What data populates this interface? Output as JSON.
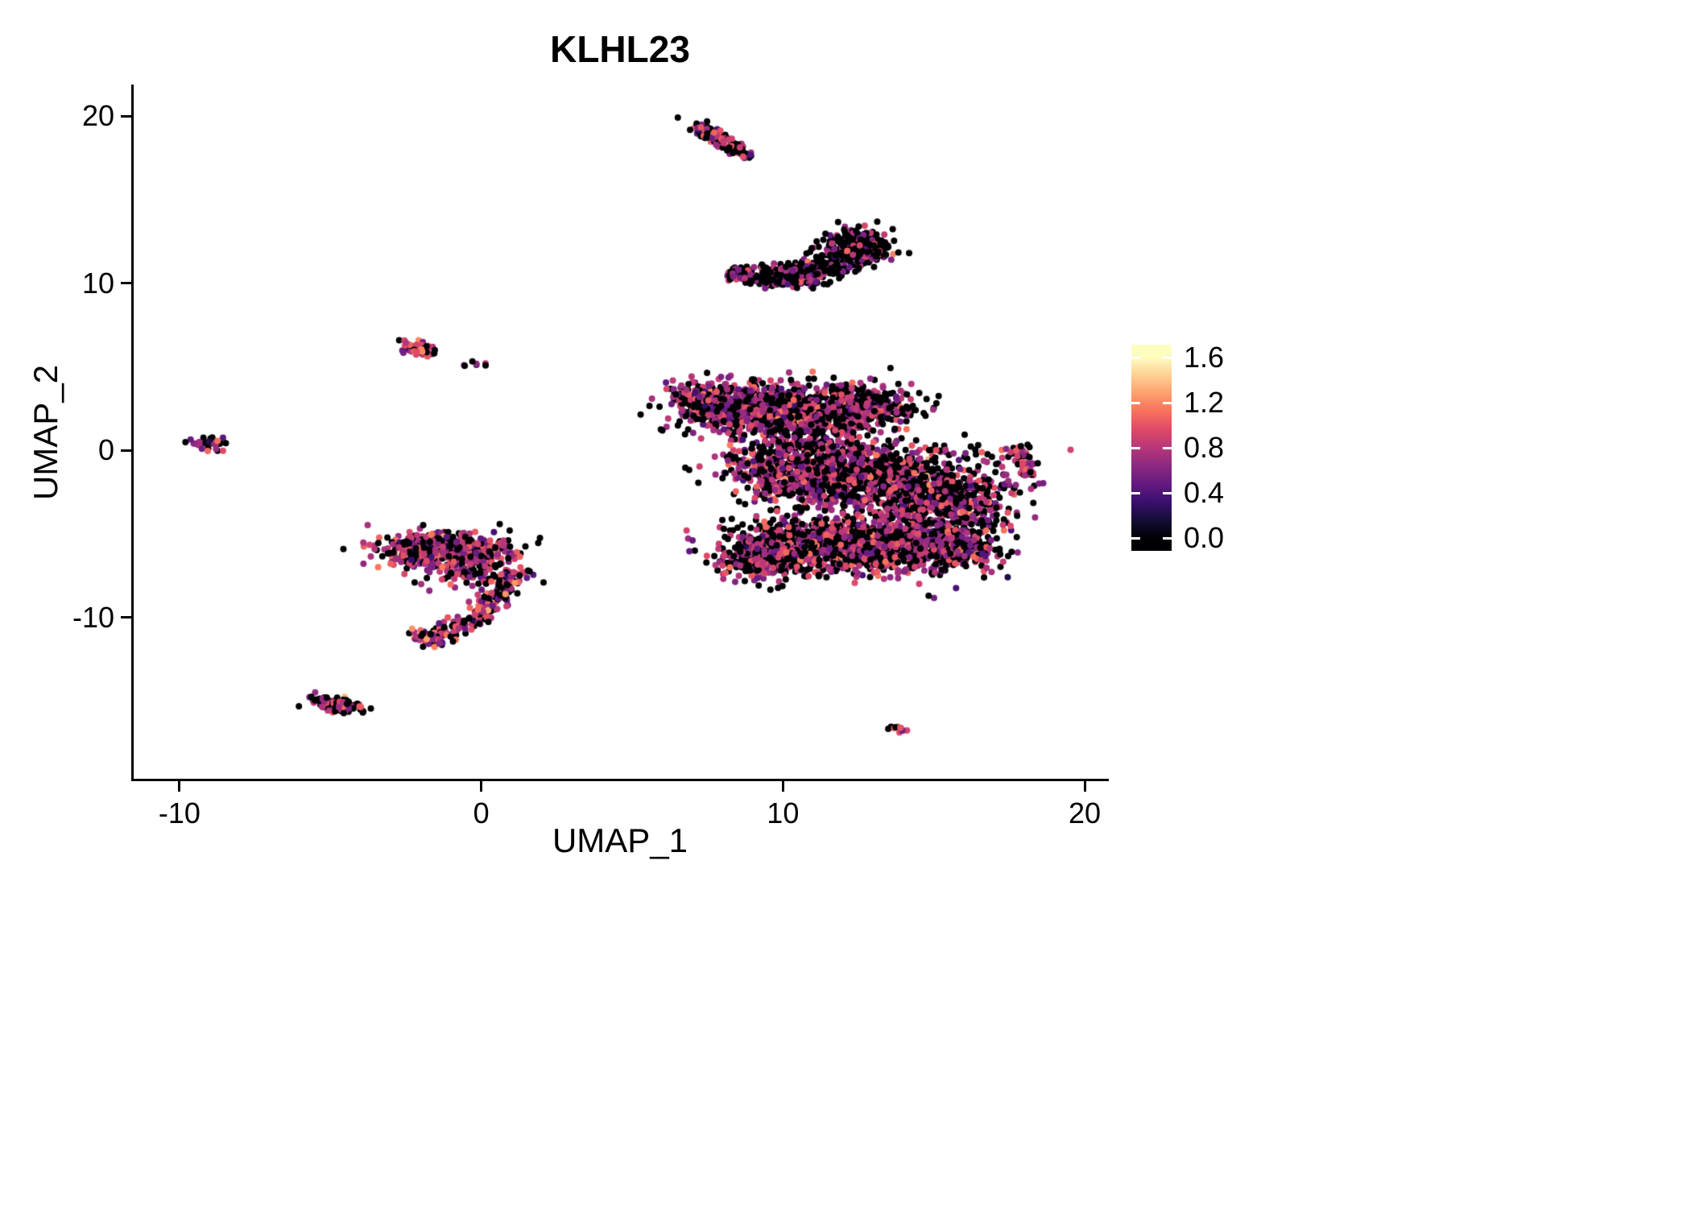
{
  "chart_data": {
    "type": "scatter",
    "title": "KLHL23",
    "xlabel": "UMAP_1",
    "ylabel": "UMAP_2",
    "xlim": [
      -11.6,
      20.8
    ],
    "ylim": [
      -19.8,
      21.9
    ],
    "x_ticks": [
      -10,
      0,
      10,
      20
    ],
    "x_tick_labels": [
      "-10",
      "0",
      "10",
      "20"
    ],
    "y_ticks": [
      -10,
      0,
      10,
      20
    ],
    "y_tick_labels": [
      "-10",
      "0",
      "10",
      "20"
    ],
    "grid": false,
    "legend_position": "right",
    "point_radius": 4,
    "color_scale_max": 1.65,
    "colorbar": {
      "min": 0.0,
      "max": 1.6,
      "tick_values": [
        1.6,
        1.2,
        0.8,
        0.4,
        0.0
      ],
      "tick_labels": [
        "1.6",
        "1.2",
        "0.8",
        "0.4",
        "0.0"
      ],
      "colormap": "magma"
    },
    "magma_stops": [
      [
        0.0,
        0,
        0,
        4
      ],
      [
        0.1,
        20,
        14,
        54
      ],
      [
        0.2,
        59,
        15,
        112
      ],
      [
        0.3,
        100,
        26,
        128
      ],
      [
        0.4,
        140,
        41,
        129
      ],
      [
        0.5,
        183,
        55,
        121
      ],
      [
        0.6,
        222,
        73,
        104
      ],
      [
        0.7,
        247,
        112,
        92
      ],
      [
        0.8,
        254,
        159,
        109
      ],
      [
        0.9,
        254,
        207,
        146
      ],
      [
        1.0,
        252,
        253,
        191
      ]
    ],
    "clusters": [
      {
        "name": "top-small-main",
        "type": "gauss",
        "cx": 7.95,
        "cy": 18.55,
        "sx": 0.55,
        "sy": 0.16,
        "rot": -45,
        "n": 170,
        "expr": {
          "p0": 0.55,
          "mu": 0.8,
          "sd": 0.22
        }
      },
      {
        "name": "top-small-tip",
        "type": "gauss",
        "cx": 7.45,
        "cy": 19.05,
        "sx": 0.22,
        "sy": 0.18,
        "rot": -45,
        "n": 35,
        "expr": {
          "p0": 0.4,
          "mu": 0.9,
          "sd": 0.25
        }
      },
      {
        "name": "crescent-arc",
        "type": "bezier",
        "p0": [
          8.25,
          10.65
        ],
        "c": [
          10.6,
          9.5
        ],
        "p1": [
          12.95,
          12.75
        ],
        "jitter": 0.3,
        "grow": true,
        "n": 520,
        "expr": {
          "p0": 0.72,
          "mu": 0.75,
          "sd": 0.2
        }
      },
      {
        "name": "crescent-right-end",
        "type": "gauss",
        "cx": 12.65,
        "cy": 12.25,
        "sx": 0.45,
        "sy": 0.5,
        "rot": 30,
        "n": 180,
        "expr": {
          "p0": 0.72,
          "mu": 0.75,
          "sd": 0.2
        }
      },
      {
        "name": "main-upper-left",
        "type": "gauss",
        "cx": 8.3,
        "cy": 2.6,
        "sx": 0.9,
        "sy": 0.75,
        "rot": -20,
        "n": 450,
        "expr": {
          "p0": 0.48,
          "mu": 0.78,
          "sd": 0.2
        }
      },
      {
        "name": "main-upper-tip",
        "type": "gauss",
        "cx": 7.0,
        "cy": 3.2,
        "sx": 0.45,
        "sy": 0.3,
        "rot": -25,
        "n": 90,
        "expr": {
          "p0": 0.48,
          "mu": 0.78,
          "sd": 0.2
        }
      },
      {
        "name": "main-upper-mid",
        "type": "gauss",
        "cx": 10.6,
        "cy": 2.2,
        "sx": 1.2,
        "sy": 0.9,
        "rot": 0,
        "n": 700,
        "expr": {
          "p0": 0.48,
          "mu": 0.78,
          "sd": 0.2
        }
      },
      {
        "name": "main-upper-right",
        "type": "gauss",
        "cx": 12.8,
        "cy": 2.6,
        "sx": 0.9,
        "sy": 0.6,
        "rot": 0,
        "n": 300,
        "expr": {
          "p0": 0.48,
          "mu": 0.78,
          "sd": 0.2
        }
      },
      {
        "name": "main-mid-left",
        "type": "gauss",
        "cx": 10.6,
        "cy": -1.2,
        "sx": 1.3,
        "sy": 1.0,
        "rot": 0,
        "n": 700,
        "expr": {
          "p0": 0.48,
          "mu": 0.78,
          "sd": 0.2
        }
      },
      {
        "name": "main-mid-right",
        "type": "gauss",
        "cx": 13.2,
        "cy": -1.6,
        "sx": 1.2,
        "sy": 1.0,
        "rot": 0,
        "n": 600,
        "expr": {
          "p0": 0.48,
          "mu": 0.78,
          "sd": 0.2
        }
      },
      {
        "name": "main-right-lobe",
        "type": "gauss",
        "cx": 15.3,
        "cy": -3.2,
        "sx": 1.1,
        "sy": 1.3,
        "rot": -30,
        "n": 600,
        "expr": {
          "p0": 0.48,
          "mu": 0.78,
          "sd": 0.2
        }
      },
      {
        "name": "main-bottom-left",
        "type": "gauss",
        "cx": 11.0,
        "cy": -5.6,
        "sx": 1.4,
        "sy": 0.9,
        "rot": 0,
        "n": 700,
        "expr": {
          "p0": 0.45,
          "mu": 0.8,
          "sd": 0.2
        }
      },
      {
        "name": "main-bottom-right",
        "type": "gauss",
        "cx": 13.8,
        "cy": -5.9,
        "sx": 1.3,
        "sy": 0.8,
        "rot": 0,
        "n": 500,
        "expr": {
          "p0": 0.45,
          "mu": 0.8,
          "sd": 0.2
        }
      },
      {
        "name": "main-bottom-bump",
        "type": "gauss",
        "cx": 9.3,
        "cy": -6.3,
        "sx": 0.8,
        "sy": 0.6,
        "rot": 20,
        "n": 250,
        "expr": {
          "p0": 0.45,
          "mu": 0.8,
          "sd": 0.2
        }
      },
      {
        "name": "main-right-tail",
        "type": "gauss",
        "cx": 16.2,
        "cy": -5.9,
        "sx": 0.6,
        "sy": 0.55,
        "rot": -35,
        "n": 150,
        "expr": {
          "p0": 0.45,
          "mu": 0.8,
          "sd": 0.2
        }
      },
      {
        "name": "right-small-upper",
        "type": "gauss",
        "cx": 17.85,
        "cy": -0.35,
        "sx": 0.22,
        "sy": 0.28,
        "rot": 0,
        "n": 28,
        "expr": {
          "p0": 0.3,
          "mu": 0.85,
          "sd": 0.2
        }
      },
      {
        "name": "right-small-lower",
        "type": "gauss",
        "cx": 18.15,
        "cy": -1.0,
        "sx": 0.18,
        "sy": 0.25,
        "rot": 0,
        "n": 22,
        "expr": {
          "p0": 0.3,
          "mu": 0.85,
          "sd": 0.2
        }
      },
      {
        "name": "far-left-small",
        "type": "gauss",
        "cx": -9.1,
        "cy": 0.45,
        "sx": 0.28,
        "sy": 0.2,
        "rot": -20,
        "n": 32,
        "expr": {
          "p0": 0.35,
          "mu": 0.8,
          "sd": 0.2
        }
      },
      {
        "name": "left-upper-small",
        "type": "gauss",
        "cx": -2.05,
        "cy": 6.1,
        "sx": 0.3,
        "sy": 0.17,
        "rot": -15,
        "n": 55,
        "expr": {
          "p0": 0.25,
          "mu": 0.9,
          "sd": 0.25
        }
      },
      {
        "name": "left-upper-dots",
        "type": "gauss",
        "cx": -0.3,
        "cy": 5.12,
        "sx": 0.3,
        "sy": 0.06,
        "rot": 0,
        "n": 7,
        "expr": {
          "p0": 0.5,
          "mu": 0.7,
          "sd": 0.2
        }
      },
      {
        "name": "hook-band",
        "type": "gauss",
        "cx": -1.0,
        "cy": -6.0,
        "sx": 1.05,
        "sy": 0.5,
        "rot": -5,
        "n": 550,
        "expr": {
          "p0": 0.35,
          "mu": 0.82,
          "sd": 0.22
        }
      },
      {
        "name": "hook-band-left",
        "type": "gauss",
        "cx": -2.35,
        "cy": -6.25,
        "sx": 0.4,
        "sy": 0.4,
        "rot": 0,
        "n": 120,
        "expr": {
          "p0": 0.35,
          "mu": 0.82,
          "sd": 0.22
        }
      },
      {
        "name": "hook-scatter",
        "type": "gauss",
        "cx": -0.2,
        "cy": -7.4,
        "sx": 0.9,
        "sy": 0.55,
        "rot": 0,
        "n": 90,
        "expr": {
          "p0": 0.5,
          "mu": 0.75,
          "sd": 0.2
        }
      },
      {
        "name": "hook-tail",
        "type": "bezier",
        "p0": [
          0.9,
          -7.2
        ],
        "c": [
          0.6,
          -10.3
        ],
        "p1": [
          -2.0,
          -11.2
        ],
        "jitter": 0.25,
        "grow": false,
        "n": 210,
        "expr": {
          "p0": 0.35,
          "mu": 0.85,
          "sd": 0.25
        }
      },
      {
        "name": "hook-tail-tip",
        "type": "gauss",
        "cx": -1.9,
        "cy": -11.15,
        "sx": 0.28,
        "sy": 0.18,
        "rot": -20,
        "n": 40,
        "expr": {
          "p0": 0.3,
          "mu": 0.95,
          "sd": 0.25
        }
      },
      {
        "name": "bottom-left-cluster",
        "type": "gauss",
        "cx": -4.75,
        "cy": -15.2,
        "sx": 0.5,
        "sy": 0.2,
        "rot": -18,
        "n": 130,
        "expr": {
          "p0": 0.5,
          "mu": 0.78,
          "sd": 0.22
        }
      },
      {
        "name": "bottom-right-tiny",
        "type": "gauss",
        "cx": 13.75,
        "cy": -16.6,
        "sx": 0.2,
        "sy": 0.1,
        "rot": -35,
        "n": 14,
        "expr": {
          "p0": 0.3,
          "mu": 0.85,
          "sd": 0.2
        }
      }
    ]
  }
}
